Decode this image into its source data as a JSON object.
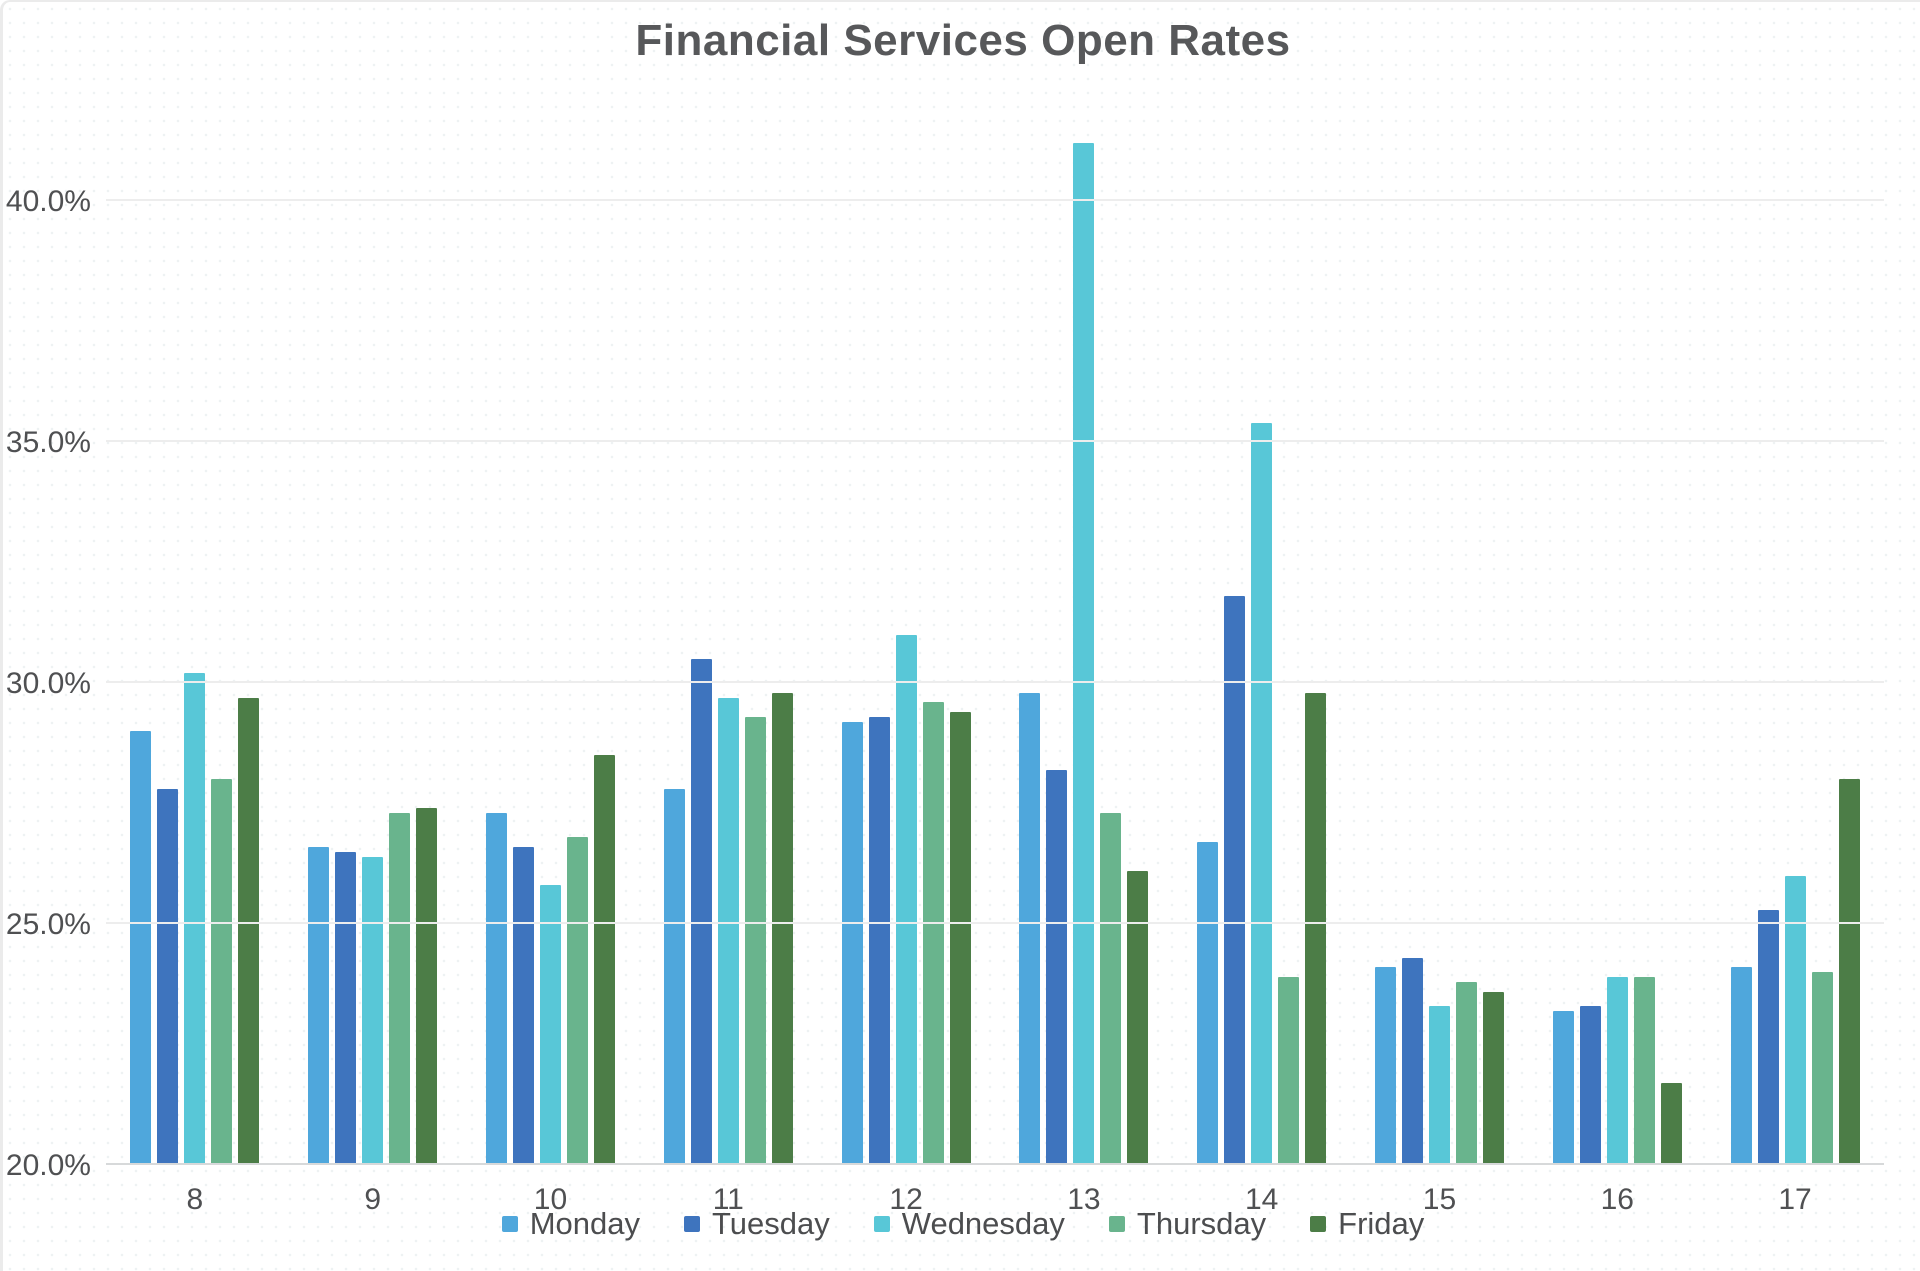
{
  "chart_data": {
    "type": "bar",
    "title": "Financial Services Open Rates",
    "xlabel": "",
    "ylabel": "",
    "categories": [
      "8",
      "9",
      "10",
      "11",
      "12",
      "13",
      "14",
      "15",
      "16",
      "17"
    ],
    "series": [
      {
        "name": "Monday",
        "color": "#4FA7DC",
        "values": [
          29.0,
          26.6,
          27.3,
          27.8,
          29.2,
          29.8,
          26.7,
          24.1,
          23.2,
          24.1
        ]
      },
      {
        "name": "Tuesday",
        "color": "#3E74BE",
        "values": [
          27.8,
          26.5,
          26.6,
          30.5,
          29.3,
          28.2,
          31.8,
          24.3,
          23.3,
          25.3
        ]
      },
      {
        "name": "Wednesday",
        "color": "#58C7D7",
        "values": [
          30.2,
          26.4,
          25.8,
          29.7,
          31.0,
          41.2,
          35.4,
          23.3,
          23.9,
          26.0
        ]
      },
      {
        "name": "Thursday",
        "color": "#69B48D",
        "values": [
          28.0,
          27.3,
          26.8,
          29.3,
          29.6,
          27.3,
          23.9,
          23.8,
          23.9,
          24.0
        ]
      },
      {
        "name": "Friday",
        "color": "#4C7D47",
        "values": [
          29.7,
          27.4,
          28.5,
          29.8,
          29.4,
          26.1,
          29.8,
          23.6,
          21.7,
          28.0
        ]
      }
    ],
    "y_ticks": [
      {
        "label": "40.0%",
        "value": 40
      },
      {
        "label": "35.0%",
        "value": 35
      },
      {
        "label": "30.0%",
        "value": 30
      },
      {
        "label": "25.0%",
        "value": 25
      },
      {
        "label": "20.0%",
        "value": 20
      }
    ],
    "ylim": [
      20,
      42.1
    ],
    "grid": true,
    "legend_position": "bottom",
    "colors": {
      "title_text": "#57585a",
      "axis_text": "#4f5052",
      "gridline": "#ededed",
      "baseline": "#d7d9da",
      "background": "#ffffff"
    }
  }
}
